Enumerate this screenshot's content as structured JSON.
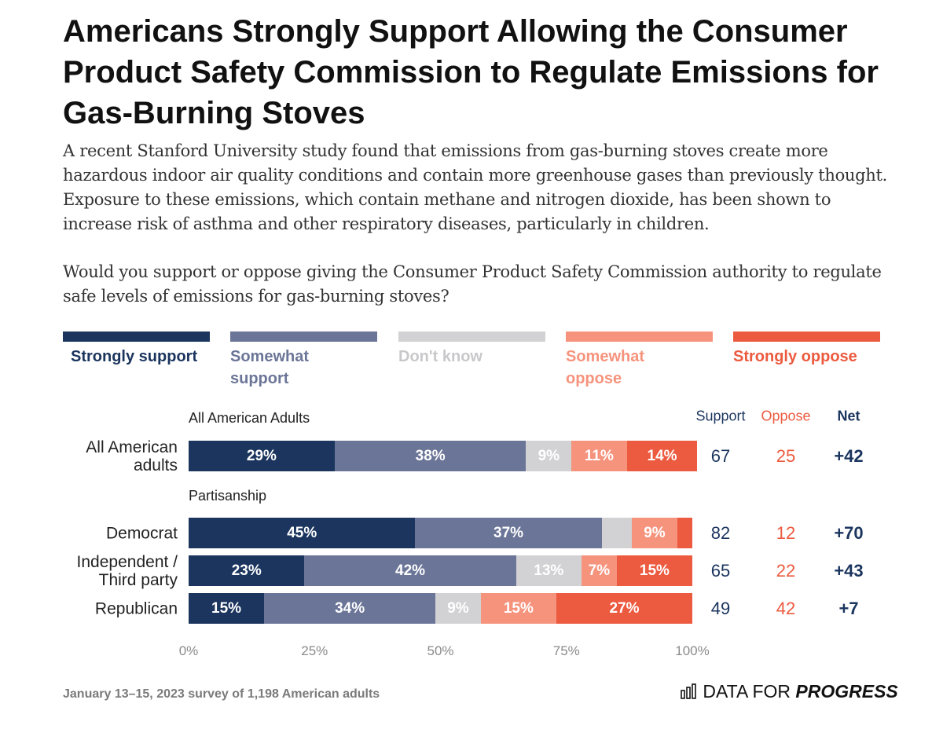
{
  "chart_data": {
    "type": "stacked-bar-horizontal",
    "title": "Americans Strongly Support Allowing the Consumer Product Safety Commission to Regulate Emissions for Gas-Burning Stoves",
    "subtitle": "A recent Stanford University study found that emissions from gas-burning stoves create more hazardous indoor air quality conditions and contain more greenhouse gases than previously thought. Exposure to these emissions, which contain methane and nitrogen dioxide, has been shown to increase risk of asthma and other respiratory diseases, particularly in children.",
    "question": "Would you support or oppose giving the Consumer Product Safety Commission authority to regulate safe levels of emissions for gas-burning stoves?",
    "groups": [
      {
        "name": "All American Adults",
        "categories": [
          "All American adults"
        ]
      },
      {
        "name": "Partisanship",
        "categories": [
          "Democrat",
          "Independent / Third party",
          "Republican"
        ]
      }
    ],
    "series": [
      {
        "name": "Strongly support",
        "color": "#1b355e",
        "label_color": "#1b355e",
        "values": [
          29,
          45,
          23,
          15
        ],
        "value_labels": [
          "29%",
          "45%",
          "23%",
          "15%"
        ]
      },
      {
        "name": "Somewhat support",
        "color": "#6b7597",
        "label_color": "#6b7597",
        "values": [
          38,
          37,
          42,
          34
        ],
        "value_labels": [
          "38%",
          "37%",
          "42%",
          "34%"
        ]
      },
      {
        "name": "Don't know",
        "color": "#d2d2d4",
        "label_color": "#c8c8ca",
        "values": [
          9,
          6,
          13,
          9
        ],
        "value_labels": [
          "9%",
          null,
          "13%",
          "9%"
        ]
      },
      {
        "name": "Somewhat oppose",
        "color": "#f6937d",
        "label_color": "#f6937d",
        "values": [
          11,
          9,
          7,
          15
        ],
        "value_labels": [
          "11%",
          "9%",
          "7%",
          "15%"
        ]
      },
      {
        "name": "Strongly oppose",
        "color": "#ec5a3f",
        "label_color": "#ec5a3f",
        "values": [
          14,
          3,
          15,
          27
        ],
        "value_labels": [
          "14%",
          null,
          "15%",
          "27%"
        ]
      }
    ],
    "columns": [
      {
        "name": "Support",
        "color": "#1b355e",
        "values": [
          67,
          82,
          65,
          49
        ]
      },
      {
        "name": "Oppose",
        "color": "#ec5a3f",
        "values": [
          25,
          12,
          22,
          42
        ]
      },
      {
        "name": "Net",
        "color": "#1b355e",
        "values": [
          42,
          70,
          43,
          7
        ],
        "value_labels": [
          "+42",
          "+70",
          "+43",
          "+7"
        ]
      }
    ],
    "xlim": [
      0,
      100
    ],
    "xticks": [
      {
        "value": 0,
        "label": "0%"
      },
      {
        "value": 25,
        "label": "25%"
      },
      {
        "value": 50,
        "label": "50%"
      },
      {
        "value": 75,
        "label": "75%"
      },
      {
        "value": 100,
        "label": "100%"
      }
    ],
    "footnote": "January 13–15, 2023 survey of 1,198 American adults",
    "brand": {
      "prefix": "DATA FOR",
      "name": "PROGRESS"
    }
  }
}
